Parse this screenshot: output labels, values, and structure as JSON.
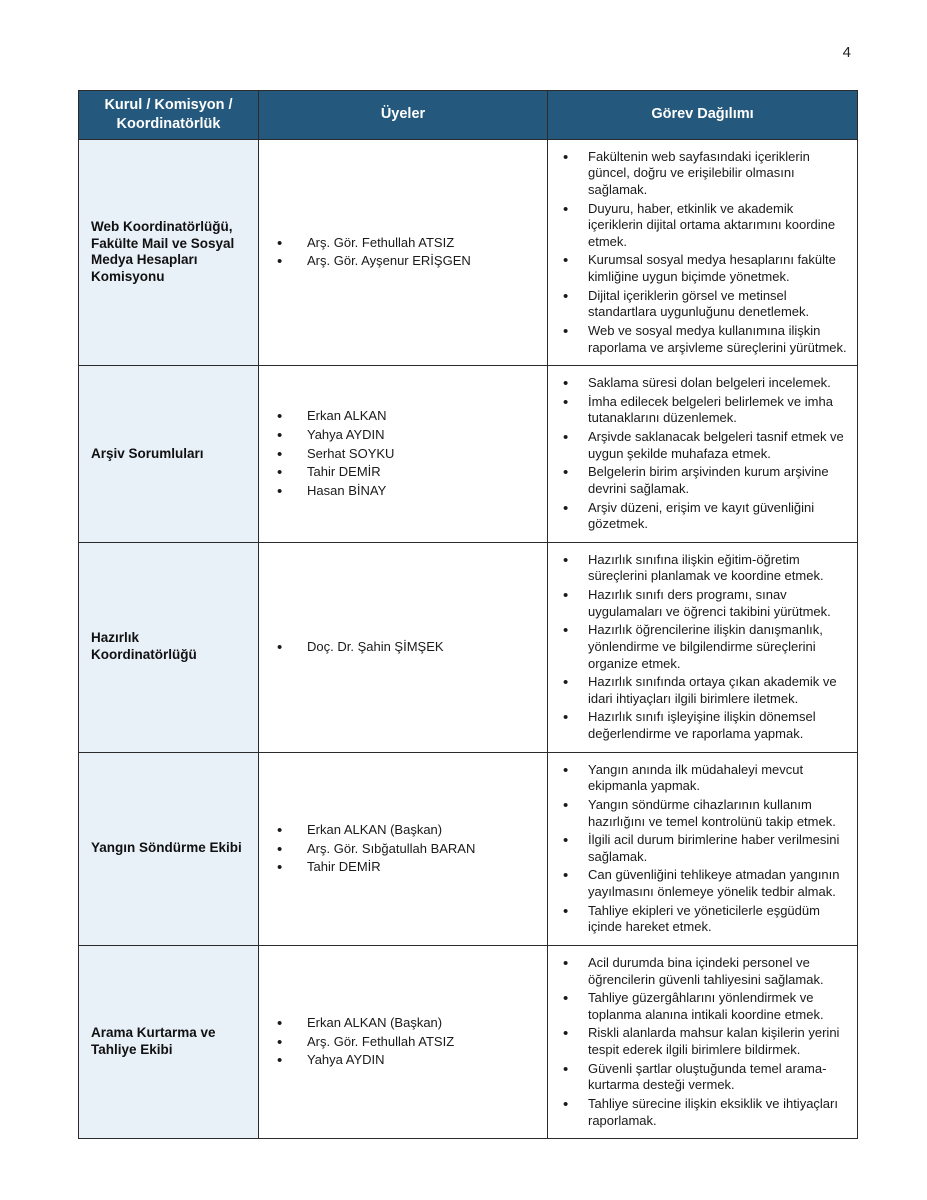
{
  "page": {
    "number": "4"
  },
  "table": {
    "headers": [
      "Kurul / Komisyon / Koordinatörlük",
      "Üyeler",
      "Görev Dağılımı"
    ],
    "rows": [
      {
        "title": "Web Koordinatörlüğü, Fakülte Mail ve Sosyal Medya Hesapları Komisyonu",
        "members": [
          "Arş. Gör. Fethullah ATSIZ",
          "Arş. Gör. Ayşenur ERİŞGEN"
        ],
        "duties": [
          "Fakültenin web sayfasındaki içeriklerin güncel, doğru ve erişilebilir olmasını sağlamak.",
          "Duyuru, haber, etkinlik ve akademik içeriklerin dijital ortama aktarımını koordine etmek.",
          "Kurumsal sosyal medya hesaplarını fakülte kimliğine uygun biçimde yönetmek.",
          "Dijital içeriklerin görsel ve metinsel standartlara uygunluğunu denetlemek.",
          "Web ve sosyal medya kullanımına ilişkin raporlama ve arşivleme süreçlerini yürütmek."
        ]
      },
      {
        "title": "Arşiv Sorumluları",
        "members": [
          "Erkan ALKAN",
          "Yahya AYDIN",
          "Serhat SOYKU",
          "Tahir DEMİR",
          "Hasan BİNAY"
        ],
        "duties": [
          "Saklama süresi dolan belgeleri incelemek.",
          "İmha edilecek belgeleri belirlemek ve imha tutanaklarını düzenlemek.",
          "Arşivde saklanacak belgeleri tasnif etmek ve uygun şekilde muhafaza etmek.",
          "Belgelerin birim arşivinden kurum arşivine devrini sağlamak.",
          "Arşiv düzeni, erişim ve kayıt güvenliğini gözetmek."
        ]
      },
      {
        "title": "Hazırlık Koordinatörlüğü",
        "members": [
          "Doç. Dr. Şahin ŞİMŞEK"
        ],
        "duties": [
          "Hazırlık sınıfına ilişkin eğitim-öğretim süreçlerini planlamak ve koordine etmek.",
          "Hazırlık sınıfı ders programı, sınav uygulamaları ve öğrenci takibini yürütmek.",
          "Hazırlık öğrencilerine ilişkin danışmanlık, yönlendirme ve bilgilendirme süreçlerini organize etmek.",
          "Hazırlık sınıfında ortaya çıkan akademik ve idari ihtiyaçları ilgili birimlere iletmek.",
          "Hazırlık sınıfı işleyişine ilişkin dönemsel değerlendirme ve raporlama yapmak."
        ]
      },
      {
        "title": "Yangın Söndürme Ekibi",
        "members": [
          "Erkan ALKAN (Başkan)",
          "Arş. Gör. Sıbğatullah BARAN",
          "Tahir DEMİR"
        ],
        "duties": [
          "Yangın anında ilk müdahaleyi mevcut ekipmanla yapmak.",
          "Yangın söndürme cihazlarının kullanım hazırlığını ve temel kontrolünü takip etmek.",
          "İlgili acil durum birimlerine haber verilmesini sağlamak.",
          "Can güvenliğini tehlikeye atmadan yangının yayılmasını önlemeye yönelik tedbir almak.",
          "Tahliye ekipleri ve yöneticilerle eşgüdüm içinde hareket etmek."
        ]
      },
      {
        "title": "Arama Kurtarma ve Tahliye Ekibi",
        "members": [
          "Erkan ALKAN (Başkan)",
          "Arş. Gör. Fethullah ATSIZ",
          "Yahya AYDIN"
        ],
        "duties": [
          "Acil durumda bina içindeki personel ve öğrencilerin güvenli tahliyesini sağlamak.",
          "Tahliye güzergâhlarını yönlendirmek ve toplanma alanına intikali koordine etmek.",
          "Riskli alanlarda mahsur kalan kişilerin yerini tespit ederek ilgili birimlere bildirmek.",
          "Güvenli şartlar oluştuğunda temel arama-kurtarma desteği vermek.",
          "Tahliye sürecine ilişkin eksiklik ve ihtiyaçları raporlamak."
        ]
      }
    ]
  },
  "colors": {
    "header_bg": "#24587d",
    "header_text": "#ffffff",
    "label_cell_bg": "#e8f0f8",
    "border": "#2b2b2b"
  }
}
